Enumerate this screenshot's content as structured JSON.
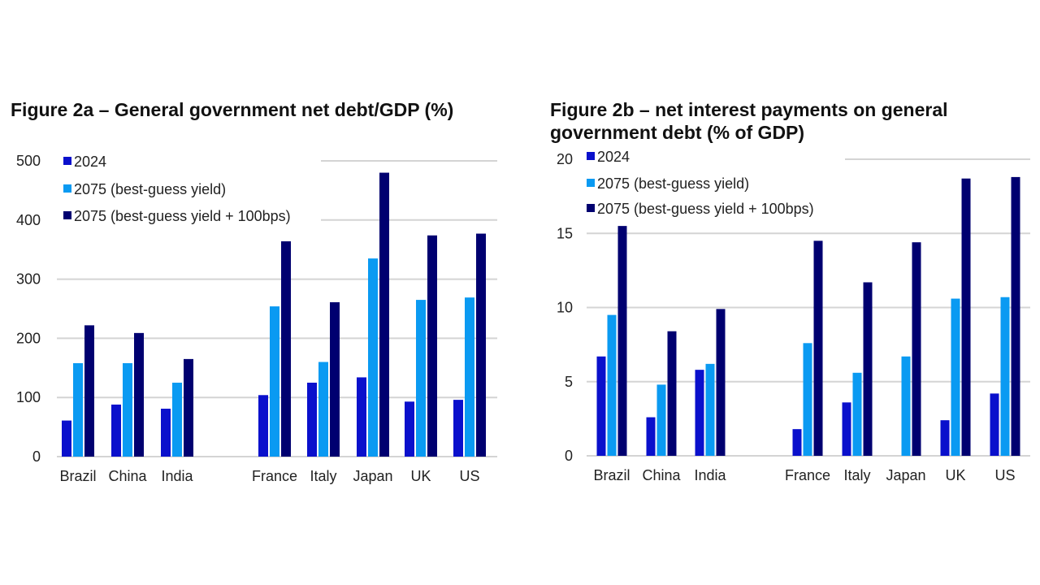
{
  "colors": {
    "2024": "#0a10cc",
    "2075_best_guess": "#0a9af2",
    "2075_plus_100bps": "#000070",
    "grid": "#d4d4d4",
    "text": "#222222"
  },
  "chart_data": [
    {
      "type": "bar",
      "title": "Figure 2a – General government net debt/GDP (%)",
      "xlabel": "",
      "ylabel": "",
      "ylim": [
        0,
        500
      ],
      "yticks": [
        0,
        100,
        200,
        300,
        400,
        500
      ],
      "grid": true,
      "legend": "top-left",
      "categories": [
        "Brazil",
        "China",
        "India",
        "",
        "France",
        "Italy",
        "Japan",
        "UK",
        "US"
      ],
      "series": [
        {
          "name": "2024",
          "values": [
            61,
            88,
            81,
            null,
            104,
            125,
            134,
            93,
            96
          ]
        },
        {
          "name": "2075 (best-guess yield)",
          "values": [
            158,
            158,
            125,
            null,
            254,
            160,
            335,
            265,
            269
          ]
        },
        {
          "name": "2075 (best-guess yield + 100bps)",
          "values": [
            222,
            209,
            165,
            null,
            364,
            261,
            480,
            374,
            377
          ]
        }
      ]
    },
    {
      "type": "bar",
      "title": "Figure 2b – net interest payments on general government debt (% of GDP)",
      "xlabel": "",
      "ylabel": "",
      "ylim": [
        0,
        20
      ],
      "yticks": [
        0,
        5,
        10,
        15,
        20
      ],
      "grid": true,
      "legend": "top-left",
      "categories": [
        "Brazil",
        "China",
        "India",
        "",
        "France",
        "Italy",
        "Japan",
        "UK",
        "US"
      ],
      "series": [
        {
          "name": "2024",
          "values": [
            6.7,
            2.6,
            5.8,
            null,
            1.8,
            3.6,
            0,
            2.4,
            4.2
          ]
        },
        {
          "name": "2075 (best-guess yield)",
          "values": [
            9.5,
            4.8,
            6.2,
            null,
            7.6,
            5.6,
            6.7,
            10.6,
            10.7
          ]
        },
        {
          "name": "2075 (best-guess yield + 100bps)",
          "values": [
            15.5,
            8.4,
            9.9,
            null,
            14.5,
            11.7,
            14.4,
            18.7,
            18.8
          ]
        }
      ]
    }
  ]
}
